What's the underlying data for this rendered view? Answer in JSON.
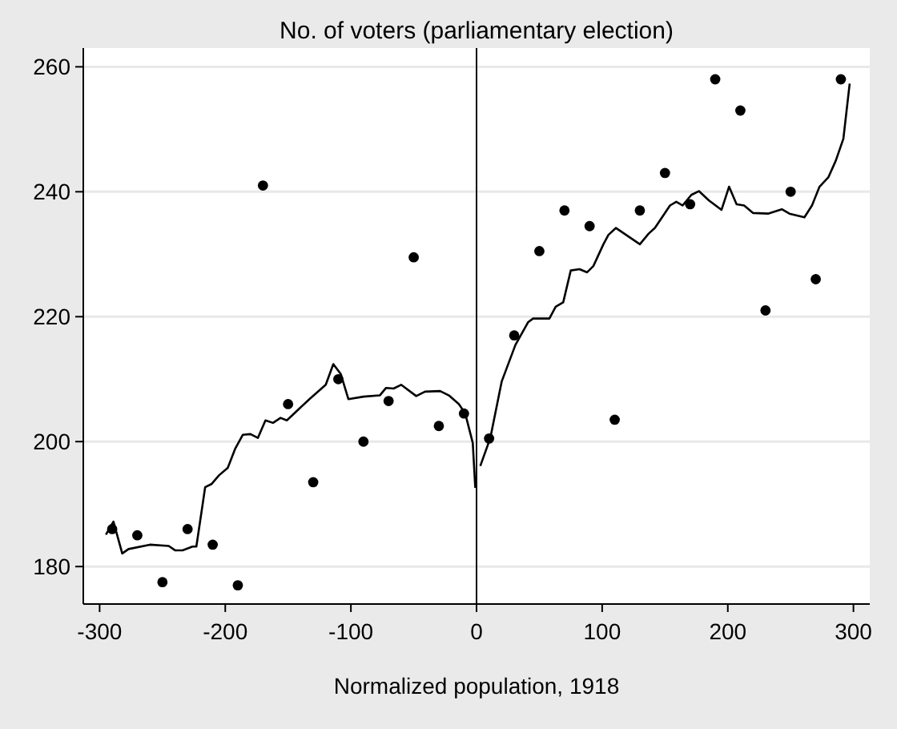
{
  "chart_data": {
    "type": "scatter",
    "title": "No. of voters (parliamentary election)",
    "xlabel": "Normalized population, 1918",
    "xlim": [
      -313,
      313
    ],
    "ylim": [
      174,
      263
    ],
    "xticks": [
      -300,
      -200,
      -100,
      0,
      100,
      200,
      300
    ],
    "yticks": [
      180,
      200,
      220,
      240,
      260
    ],
    "grid": "y",
    "ref_lines": [
      {
        "axis": "x",
        "value": 0,
        "color": "#000000"
      }
    ],
    "series": [
      {
        "color": "#000000",
        "marker": "circle",
        "x": [
          -290,
          -270,
          -250,
          -230,
          -210,
          -190,
          -170,
          -150,
          -130,
          -110,
          -90,
          -70,
          -50,
          -30,
          -10,
          10,
          30,
          50,
          70,
          90,
          110,
          130,
          150,
          170,
          190,
          210,
          230,
          250,
          270,
          290
        ],
        "values": [
          186,
          185,
          177.5,
          186,
          183.5,
          177,
          241,
          206,
          193.5,
          210,
          200,
          206.5,
          229.5,
          202.5,
          204.5,
          200.5,
          217,
          230.5,
          237,
          234.5,
          203.5,
          237,
          243,
          238,
          258,
          253,
          221,
          240,
          226,
          258
        ]
      },
      {
        "type": "line",
        "color": "#000000",
        "marker": "none",
        "line_style": "solid",
        "x": [
          -295,
          -289,
          -282,
          -277,
          -260,
          -245,
          -240,
          -234,
          -226,
          -223,
          -216,
          -211,
          -205,
          -198,
          -192,
          -186,
          -180,
          -174,
          -168,
          -162,
          -156,
          -151,
          -141,
          -133,
          -120,
          -114,
          -108,
          -102,
          -90,
          -77,
          -72,
          -66,
          -60,
          -48,
          -41,
          -29,
          -22,
          -14,
          -9,
          -3,
          -1
        ],
        "values": [
          185.1,
          187.2,
          182.1,
          182.8,
          183.5,
          183.3,
          182.6,
          182.6,
          183.2,
          183.2,
          192.7,
          193.2,
          194.6,
          195.8,
          198.9,
          201.1,
          201.2,
          200.6,
          203.4,
          203,
          203.8,
          203.4,
          205.3,
          206.8,
          209.1,
          212.4,
          210.8,
          206.8,
          207.2,
          207.4,
          208.6,
          208.5,
          209.1,
          207.3,
          208,
          208.1,
          207.4,
          206,
          204.5,
          199.8,
          192.6
        ]
      },
      {
        "type": "line",
        "color": "#000000",
        "marker": "none",
        "line_style": "solid",
        "x": [
          3,
          11,
          20,
          31,
          41,
          45,
          58,
          63,
          69,
          75,
          82,
          88,
          93,
          101,
          105,
          111,
          130,
          137,
          142,
          154,
          159,
          164,
          171,
          177,
          185,
          195,
          201,
          207,
          213,
          220,
          232,
          243,
          249,
          261,
          267,
          273,
          280,
          286,
          292,
          297
        ],
        "values": [
          196.1,
          200.6,
          209.6,
          215.5,
          219.1,
          219.7,
          219.7,
          221.6,
          222.3,
          227.4,
          227.6,
          227.1,
          228.1,
          231.6,
          233.1,
          234.2,
          231.6,
          233.3,
          234.2,
          237.8,
          238.4,
          237.8,
          239.5,
          240.1,
          238.6,
          237.1,
          240.8,
          238,
          237.8,
          236.6,
          236.5,
          237.2,
          236.5,
          235.9,
          237.8,
          240.8,
          242.3,
          245,
          248.5,
          257.3
        ]
      }
    ]
  }
}
